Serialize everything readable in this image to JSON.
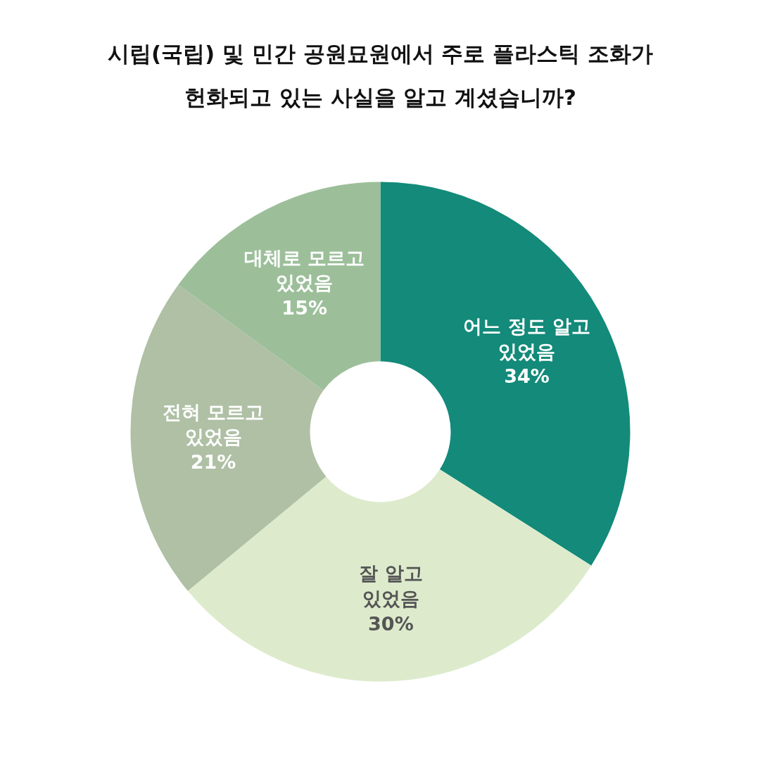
{
  "chart_data": {
    "type": "donut",
    "title": "시립(국립) 및 민간 공원묘원에서 주로 플라스틱 조화가\n헌화되고 있는 사실을 알고 계셨습니까?",
    "categories": [
      "어느 정도 알고\n있었음",
      "잘 알고\n있었음",
      "전혀 모르고\n있었음",
      "대체로 모르고\n있었음"
    ],
    "values": [
      34,
      30,
      21,
      15
    ],
    "value_labels": [
      "34%",
      "30%",
      "21%",
      "15%"
    ],
    "colors": [
      "#138a7a",
      "#ddebcc",
      "#afc0a5",
      "#9cbf9a"
    ]
  }
}
